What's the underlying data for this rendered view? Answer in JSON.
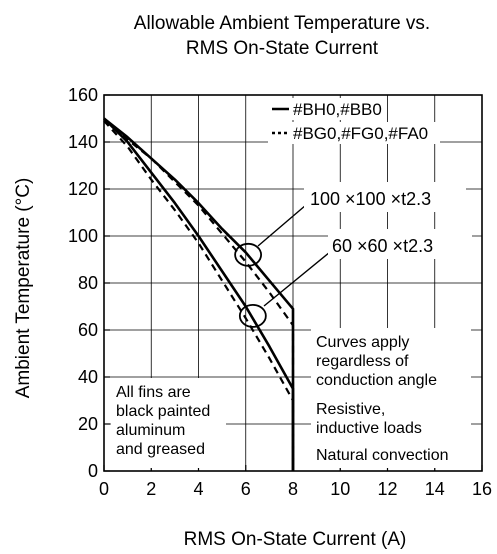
{
  "chart_data": {
    "type": "line",
    "title_line1": "Allowable Ambient Temperature vs.",
    "title_line2": "RMS On-State Current",
    "xlabel": "RMS On-State Current  (A)",
    "ylabel": "Ambient Temperature (°C)",
    "xlim": [
      0,
      16
    ],
    "ylim": [
      0,
      160
    ],
    "xticks": [
      0,
      2,
      4,
      6,
      8,
      10,
      12,
      14,
      16
    ],
    "yticks": [
      0,
      20,
      40,
      60,
      80,
      100,
      120,
      140,
      160
    ],
    "grid": true,
    "legend_position": "top-right",
    "legend": [
      {
        "style": "solid",
        "label": "#BH0,#BB0"
      },
      {
        "style": "dashed",
        "label": "#BG0,#FG0,#FA0"
      }
    ],
    "series": [
      {
        "line": "solid",
        "fin": "100 ×100 ×t2.3",
        "x": [
          0,
          1,
          2,
          3,
          4,
          5,
          6,
          7,
          8,
          8
        ],
        "y": [
          150,
          142,
          133,
          124,
          114,
          103,
          93,
          81,
          69,
          0
        ]
      },
      {
        "line": "dashed",
        "fin": "100 ×100 ×t2.3",
        "x": [
          0,
          1,
          2,
          3,
          4,
          5,
          6,
          7,
          8,
          8
        ],
        "y": [
          149,
          141,
          133,
          123,
          113,
          101,
          89,
          76,
          62,
          0
        ]
      },
      {
        "line": "solid",
        "fin": "60 ×60 ×t2.3",
        "x": [
          0,
          1,
          2,
          3,
          4,
          5,
          6,
          7,
          8,
          8
        ],
        "y": [
          150,
          140,
          127,
          114,
          100,
          85,
          70,
          53,
          35,
          0
        ]
      },
      {
        "line": "dashed",
        "fin": "60 ×60 ×t2.3",
        "x": [
          0,
          1,
          2,
          3,
          4,
          5,
          6,
          7,
          8,
          8
        ],
        "y": [
          149,
          138,
          124,
          111,
          97,
          81,
          65,
          48,
          30,
          0
        ]
      }
    ],
    "annotations": [
      {
        "id": "fin-100",
        "text": "100 ×100 ×t2.3",
        "circle_at": [
          6.1,
          92
        ]
      },
      {
        "id": "fin-60",
        "text": "60 ×60 ×t2.3",
        "circle_at": [
          6.3,
          66
        ]
      }
    ],
    "notes_right": [
      [
        "Curves apply",
        "regardless of",
        "conduction angle"
      ],
      [
        "Resistive,",
        "inductive loads"
      ],
      [
        "Natural convection"
      ]
    ],
    "notes_left": [
      "All fins are",
      "black painted",
      "aluminum",
      "and greased"
    ]
  }
}
